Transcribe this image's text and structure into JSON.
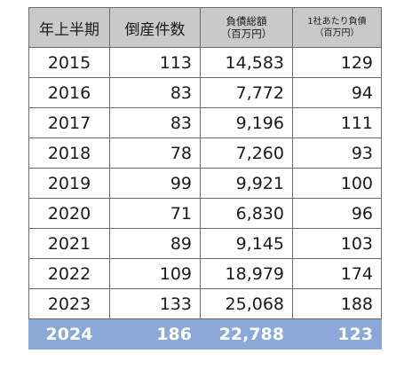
{
  "chart_data": {
    "type": "table",
    "columns": [
      {
        "label": "年上半期"
      },
      {
        "label": "倒産件数"
      },
      {
        "label": "負債総額",
        "sublabel": "（百万円）"
      },
      {
        "label": "1社あたり負債",
        "sublabel": "（百万円）"
      }
    ],
    "rows": [
      {
        "year": "2015",
        "count": "113",
        "debt": "14,583",
        "per": "129"
      },
      {
        "year": "2016",
        "count": "83",
        "debt": "7,772",
        "per": "94"
      },
      {
        "year": "2017",
        "count": "83",
        "debt": "9,196",
        "per": "111"
      },
      {
        "year": "2018",
        "count": "78",
        "debt": "7,260",
        "per": "93"
      },
      {
        "year": "2019",
        "count": "99",
        "debt": "9,921",
        "per": "100"
      },
      {
        "year": "2020",
        "count": "71",
        "debt": "6,830",
        "per": "96"
      },
      {
        "year": "2021",
        "count": "89",
        "debt": "9,145",
        "per": "103"
      },
      {
        "year": "2022",
        "count": "109",
        "debt": "18,979",
        "per": "174"
      },
      {
        "year": "2023",
        "count": "133",
        "debt": "25,068",
        "per": "188"
      },
      {
        "year": "2024",
        "count": "186",
        "debt": "22,788",
        "per": "123",
        "highlight": true
      }
    ]
  },
  "colors": {
    "header_bg": "#c9c9c9",
    "highlight_bg": "#8aa8d8",
    "border": "#6b6b6b"
  }
}
